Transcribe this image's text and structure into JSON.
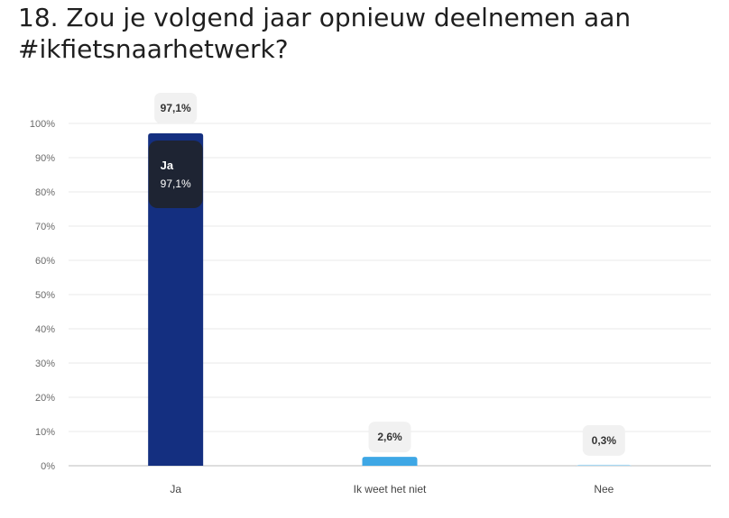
{
  "question": {
    "title": "18. Zou je volgend jaar opnieuw deelnemen aan #ikfietsnaarhetwerk?"
  },
  "chart_data": {
    "type": "bar",
    "title": "18. Zou je volgend jaar opnieuw deelnemen aan #ikfietsnaarhetwerk?",
    "categories": [
      "Ja",
      "Ik weet het niet",
      "Nee"
    ],
    "values": [
      97.1,
      2.6,
      0.3
    ],
    "value_labels": [
      "97,1%",
      "2,6%",
      "0,3%"
    ],
    "bar_colors": [
      "#142f80",
      "#3ea7e5",
      "#a7d8f4"
    ],
    "ylim": [
      0,
      100
    ],
    "yticks": [
      0,
      10,
      20,
      30,
      40,
      50,
      60,
      70,
      80,
      90,
      100
    ],
    "ytick_labels": [
      "0%",
      "10%",
      "20%",
      "30%",
      "40%",
      "50%",
      "60%",
      "70%",
      "80%",
      "90%",
      "100%"
    ],
    "xlabel": "",
    "ylabel": "",
    "grid": true,
    "legend": "none",
    "tooltip": {
      "category": "Ja",
      "value_label": "97,1%"
    }
  }
}
